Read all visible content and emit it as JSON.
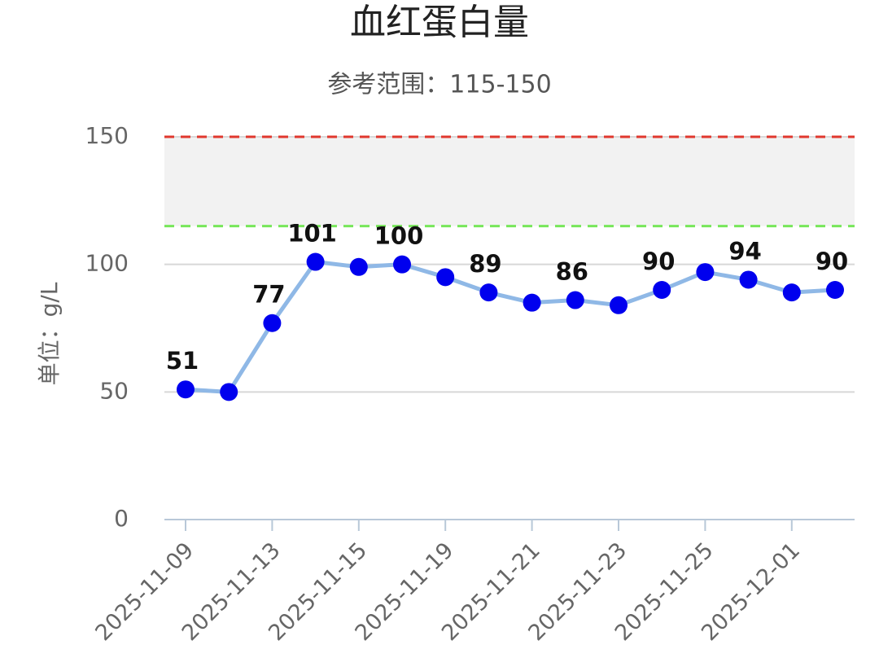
{
  "chart_data": {
    "type": "line",
    "title": "血红蛋白量",
    "subtitle": "参考范围：115-150",
    "y_label": "单位：g/L",
    "categories": [
      "2025-11-09",
      null,
      "2025-11-13",
      null,
      "2025-11-15",
      null,
      "2025-11-19",
      null,
      "2025-11-21",
      null,
      "2025-11-23",
      null,
      "2025-11-25",
      null,
      "2025-12-01",
      null
    ],
    "series": [
      {
        "color": "#8fb8e6",
        "marker_color": "#0000ee",
        "values": [
          51,
          50,
          77,
          101,
          99,
          100,
          95,
          89,
          85,
          86,
          84,
          90,
          97,
          94,
          89,
          90
        ],
        "show_label": [
          true,
          false,
          true,
          true,
          false,
          true,
          false,
          true,
          false,
          true,
          false,
          true,
          false,
          true,
          false,
          true
        ]
      }
    ],
    "reference_range": {
      "low": 115,
      "high": 150,
      "low_color": "#77e65a",
      "high_color": "#e0382e",
      "fill": "#f2f2f2"
    },
    "ylim": [
      0,
      150
    ],
    "yticks": [
      0,
      50,
      100,
      150
    ],
    "grid": true
  }
}
